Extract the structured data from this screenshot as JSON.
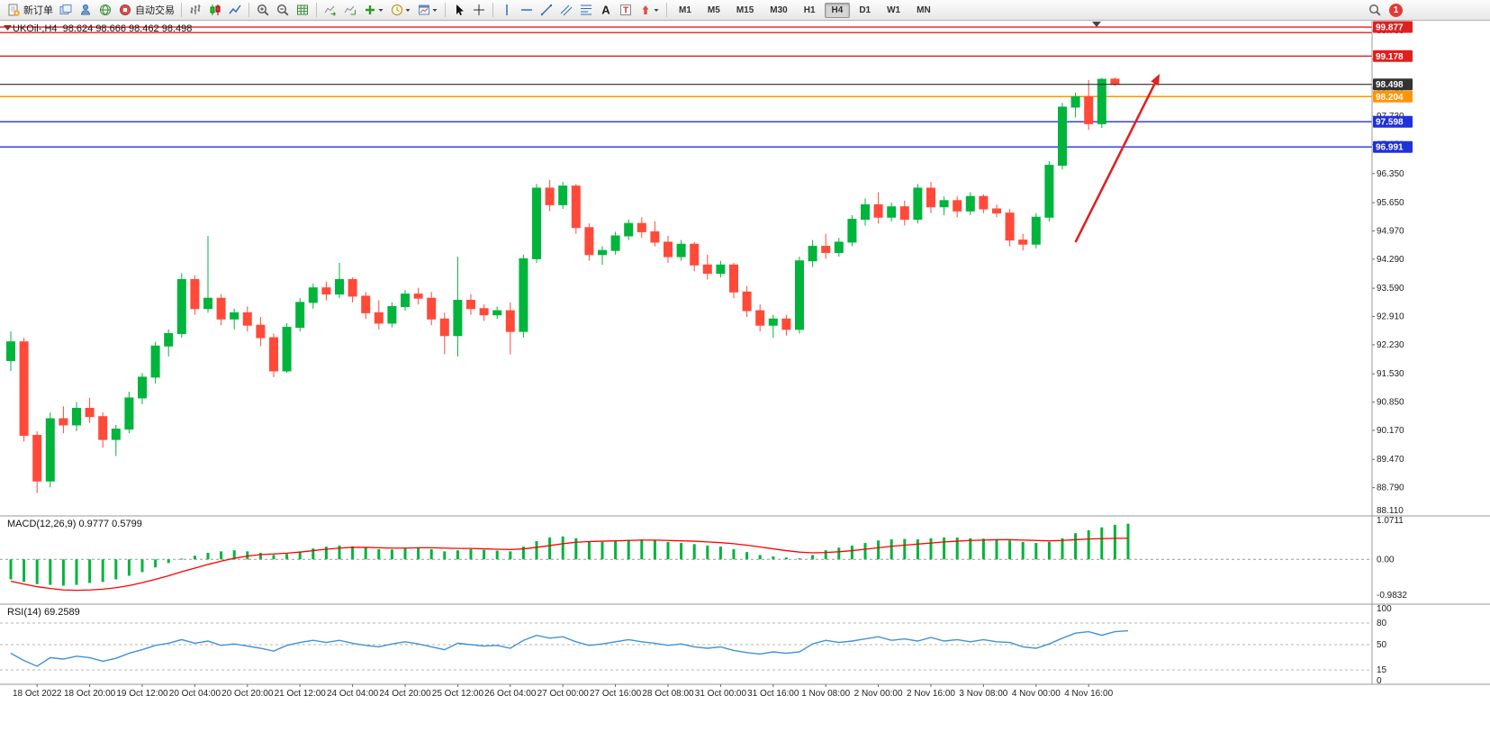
{
  "toolbar": {
    "notification_count": "1",
    "active_timeframe": "H4",
    "timeframes": [
      "M1",
      "M5",
      "M15",
      "M30",
      "H1",
      "H4",
      "D1",
      "W1",
      "MN"
    ],
    "items": [
      {
        "type": "button",
        "name": "new-order-button",
        "icon": "new-order",
        "label": "新订单"
      },
      {
        "type": "icon",
        "name": "chart-windows-icon",
        "icon": "layers"
      },
      {
        "type": "icon",
        "name": "market-watch-icon",
        "icon": "person"
      },
      {
        "type": "icon",
        "name": "community-icon",
        "icon": "globe"
      },
      {
        "type": "button",
        "name": "autotrading-button",
        "icon": "autotrade",
        "label": "自动交易"
      },
      {
        "type": "sep"
      },
      {
        "type": "icon",
        "name": "bar-chart-button",
        "icon": "bars"
      },
      {
        "type": "icon",
        "name": "candlestick-chart-button",
        "icon": "candles"
      },
      {
        "type": "icon",
        "name": "line-chart-button",
        "icon": "linechart"
      },
      {
        "type": "sep"
      },
      {
        "type": "icon",
        "name": "zoom-in-button",
        "icon": "zoom-in"
      },
      {
        "type": "icon",
        "name": "zoom-out-button",
        "icon": "zoom-out"
      },
      {
        "type": "icon",
        "name": "tile-windows-button",
        "icon": "grid"
      },
      {
        "type": "sep"
      },
      {
        "type": "icon",
        "name": "auto-scroll-button",
        "icon": "autoscroll"
      },
      {
        "type": "icon",
        "name": "chart-shift-button",
        "icon": "chartshift"
      },
      {
        "type": "icon",
        "name": "indicators-button",
        "icon": "plus",
        "dropdown": true
      },
      {
        "type": "icon",
        "name": "periods-button",
        "icon": "clock",
        "dropdown": true
      },
      {
        "type": "icon",
        "name": "templates-button",
        "icon": "template",
        "dropdown": true
      },
      {
        "type": "sep"
      },
      {
        "type": "icon",
        "name": "cursor-button",
        "icon": "cursor"
      },
      {
        "type": "icon",
        "name": "crosshair-button",
        "icon": "crosshair"
      },
      {
        "type": "sep"
      },
      {
        "type": "icon",
        "name": "vertical-line-button",
        "icon": "vline"
      },
      {
        "type": "icon",
        "name": "horizontal-line-button",
        "icon": "hline"
      },
      {
        "type": "icon",
        "name": "trendline-button",
        "icon": "trendline"
      },
      {
        "type": "icon",
        "name": "equidistant-channel-button",
        "icon": "channel"
      },
      {
        "type": "icon",
        "name": "fibonacci-button",
        "icon": "fibo"
      },
      {
        "type": "icon",
        "name": "text-button",
        "icon": "textA"
      },
      {
        "type": "icon",
        "name": "text-label-button",
        "icon": "textT"
      },
      {
        "type": "icon",
        "name": "arrows-button",
        "icon": "arrowmark",
        "dropdown": true
      },
      {
        "type": "sep"
      },
      {
        "type": "timeframes"
      },
      {
        "type": "spacer"
      },
      {
        "type": "icon",
        "name": "search-icon",
        "icon": "search"
      },
      {
        "type": "badge",
        "name": "notification-badge"
      },
      {
        "type": "rightpad"
      }
    ]
  },
  "chart": {
    "header": "UKOil-,H4  98.624 98.666 98.462 98.498",
    "macd_label": "MACD(12,26,9) 0.9777 0.5799",
    "rsi_label": "RSI(14) 69.2589"
  },
  "chart_data": {
    "type": "candlestick",
    "symbol": "UKOil-",
    "timeframe": "H4",
    "ohlc_header": {
      "open": 98.624,
      "high": 98.666,
      "low": 98.462,
      "close": 98.498
    },
    "price_axis": {
      "min": 88.11,
      "max": 100.03,
      "ticks": [
        "99.790",
        "99.110",
        "98.410",
        "97.730",
        "97.050",
        "96.350",
        "95.650",
        "94.970",
        "94.290",
        "93.590",
        "92.910",
        "92.230",
        "91.530",
        "90.850",
        "90.170",
        "89.470",
        "88.790",
        "88.110"
      ]
    },
    "time_labels": [
      "18 Oct 2022",
      "18 Oct 20:00",
      "19 Oct 12:00",
      "20 Oct 04:00",
      "20 Oct 20:00",
      "21 Oct 12:00",
      "24 Oct 04:00",
      "24 Oct 20:00",
      "25 Oct 12:00",
      "26 Oct 04:00",
      "27 Oct 00:00",
      "27 Oct 16:00",
      "28 Oct 08:00",
      "31 Oct 00:00",
      "31 Oct 16:00",
      "1 Nov 08:00",
      "2 Nov 00:00",
      "2 Nov 16:00",
      "3 Nov 08:00",
      "4 Nov 00:00",
      "4 Nov 16:00"
    ],
    "candles": [
      [
        91.85,
        92.55,
        91.6,
        92.3
      ],
      [
        92.3,
        92.4,
        89.9,
        90.05
      ],
      [
        90.05,
        90.15,
        88.66,
        88.95
      ],
      [
        88.95,
        90.6,
        88.8,
        90.45
      ],
      [
        90.45,
        90.75,
        90.1,
        90.3
      ],
      [
        90.3,
        90.85,
        90.15,
        90.7
      ],
      [
        90.7,
        90.95,
        90.35,
        90.5
      ],
      [
        90.5,
        90.6,
        89.75,
        89.95
      ],
      [
        89.95,
        90.3,
        89.55,
        90.2
      ],
      [
        90.2,
        91.1,
        90.1,
        90.95
      ],
      [
        90.95,
        91.55,
        90.8,
        91.45
      ],
      [
        91.45,
        92.3,
        91.3,
        92.2
      ],
      [
        92.2,
        92.6,
        91.95,
        92.5
      ],
      [
        92.5,
        93.95,
        92.4,
        93.8
      ],
      [
        93.8,
        93.9,
        92.95,
        93.1
      ],
      [
        93.1,
        94.85,
        93.0,
        93.35
      ],
      [
        93.35,
        93.45,
        92.7,
        92.85
      ],
      [
        92.85,
        93.1,
        92.6,
        93.0
      ],
      [
        93.0,
        93.15,
        92.55,
        92.7
      ],
      [
        92.7,
        92.9,
        92.2,
        92.4
      ],
      [
        92.4,
        92.5,
        91.45,
        91.6
      ],
      [
        91.6,
        92.75,
        91.55,
        92.65
      ],
      [
        92.65,
        93.35,
        92.55,
        93.25
      ],
      [
        93.25,
        93.7,
        93.1,
        93.6
      ],
      [
        93.6,
        93.75,
        93.3,
        93.45
      ],
      [
        93.45,
        94.2,
        93.35,
        93.8
      ],
      [
        93.8,
        93.85,
        93.25,
        93.4
      ],
      [
        93.4,
        93.5,
        92.85,
        93.0
      ],
      [
        93.0,
        93.3,
        92.6,
        92.75
      ],
      [
        92.75,
        93.25,
        92.65,
        93.15
      ],
      [
        93.15,
        93.55,
        93.05,
        93.45
      ],
      [
        93.45,
        93.6,
        93.2,
        93.35
      ],
      [
        93.35,
        93.5,
        92.7,
        92.85
      ],
      [
        92.85,
        93.0,
        92.0,
        92.45
      ],
      [
        92.45,
        94.35,
        91.95,
        93.3
      ],
      [
        93.3,
        93.45,
        92.95,
        93.1
      ],
      [
        93.1,
        93.2,
        92.8,
        92.95
      ],
      [
        92.95,
        93.15,
        92.85,
        93.05
      ],
      [
        93.05,
        93.25,
        92.0,
        92.55
      ],
      [
        92.55,
        94.4,
        92.4,
        94.3
      ],
      [
        94.3,
        96.1,
        94.2,
        96.0
      ],
      [
        96.0,
        96.2,
        95.45,
        95.6
      ],
      [
        95.6,
        96.15,
        95.5,
        96.05
      ],
      [
        96.05,
        96.1,
        94.9,
        95.05
      ],
      [
        95.05,
        95.15,
        94.25,
        94.4
      ],
      [
        94.4,
        94.6,
        94.15,
        94.5
      ],
      [
        94.5,
        94.95,
        94.4,
        94.85
      ],
      [
        94.85,
        95.25,
        94.75,
        95.15
      ],
      [
        95.15,
        95.3,
        94.8,
        94.95
      ],
      [
        94.95,
        95.2,
        94.6,
        94.7
      ],
      [
        94.7,
        94.85,
        94.2,
        94.35
      ],
      [
        94.35,
        94.75,
        94.25,
        94.65
      ],
      [
        94.65,
        94.7,
        94.0,
        94.15
      ],
      [
        94.15,
        94.4,
        93.8,
        93.95
      ],
      [
        93.95,
        94.25,
        93.85,
        94.15
      ],
      [
        94.15,
        94.2,
        93.35,
        93.5
      ],
      [
        93.5,
        93.65,
        92.9,
        93.05
      ],
      [
        93.05,
        93.2,
        92.55,
        92.7
      ],
      [
        92.7,
        92.95,
        92.4,
        92.85
      ],
      [
        92.85,
        92.95,
        92.45,
        92.6
      ],
      [
        92.6,
        94.35,
        92.5,
        94.25
      ],
      [
        94.25,
        94.75,
        94.1,
        94.6
      ],
      [
        94.6,
        94.9,
        94.3,
        94.45
      ],
      [
        94.45,
        94.8,
        94.35,
        94.7
      ],
      [
        94.7,
        95.35,
        94.6,
        95.25
      ],
      [
        95.25,
        95.75,
        95.1,
        95.6
      ],
      [
        95.6,
        95.9,
        95.15,
        95.3
      ],
      [
        95.3,
        95.65,
        95.2,
        95.55
      ],
      [
        95.55,
        95.7,
        95.1,
        95.25
      ],
      [
        95.25,
        96.1,
        95.15,
        96.0
      ],
      [
        96.0,
        96.15,
        95.4,
        95.55
      ],
      [
        95.55,
        95.8,
        95.35,
        95.7
      ],
      [
        95.7,
        95.8,
        95.3,
        95.45
      ],
      [
        95.45,
        95.9,
        95.35,
        95.8
      ],
      [
        95.8,
        95.85,
        95.4,
        95.5
      ],
      [
        95.5,
        95.6,
        95.3,
        95.4
      ],
      [
        95.4,
        95.5,
        94.6,
        94.75
      ],
      [
        94.75,
        94.9,
        94.5,
        94.65
      ],
      [
        94.65,
        95.4,
        94.55,
        95.3
      ],
      [
        95.3,
        96.65,
        95.2,
        96.55
      ],
      [
        96.55,
        98.05,
        96.45,
        97.95
      ],
      [
        97.95,
        98.3,
        97.7,
        98.2
      ],
      [
        98.2,
        98.6,
        97.4,
        97.55
      ],
      [
        97.55,
        98.65,
        97.45,
        98.62
      ],
      [
        98.624,
        98.666,
        98.462,
        98.498
      ]
    ],
    "hlines": [
      {
        "price": 99.877,
        "color": "red",
        "label": "99.877"
      },
      {
        "price": 99.745,
        "color": "red",
        "label": ""
      },
      {
        "price": 99.178,
        "color": "red",
        "label": "99.178"
      },
      {
        "price": 98.204,
        "color": "orange",
        "label": "98.204"
      },
      {
        "price": 97.598,
        "color": "blue",
        "label": "97.598"
      },
      {
        "price": 96.991,
        "color": "blue",
        "label": "96.991"
      }
    ],
    "current_price": {
      "value": 98.498,
      "label": "98.498"
    },
    "trend_arrow": {
      "from_index": 81,
      "from_price": 94.7,
      "to_index": 87.4,
      "to_price": 98.75
    },
    "macd": {
      "name": "MACD(12,26,9)",
      "value": 0.9777,
      "signal_value": 0.5799,
      "axis_labels": [
        "1.0711",
        "0.00",
        "-0.9832"
      ],
      "max": 1.0711,
      "min": -0.9832,
      "hist": [
        -0.55,
        -0.62,
        -0.68,
        -0.7,
        -0.72,
        -0.7,
        -0.65,
        -0.62,
        -0.55,
        -0.45,
        -0.35,
        -0.22,
        -0.1,
        0.02,
        0.1,
        0.18,
        0.22,
        0.25,
        0.22,
        0.18,
        0.12,
        0.15,
        0.22,
        0.3,
        0.35,
        0.38,
        0.36,
        0.32,
        0.28,
        0.27,
        0.3,
        0.32,
        0.28,
        0.22,
        0.25,
        0.28,
        0.26,
        0.24,
        0.22,
        0.35,
        0.5,
        0.6,
        0.63,
        0.58,
        0.5,
        0.48,
        0.5,
        0.54,
        0.55,
        0.52,
        0.48,
        0.45,
        0.42,
        0.38,
        0.35,
        0.28,
        0.2,
        0.12,
        0.08,
        0.05,
        0.03,
        0.12,
        0.25,
        0.32,
        0.38,
        0.45,
        0.52,
        0.55,
        0.56,
        0.55,
        0.58,
        0.6,
        0.6,
        0.58,
        0.57,
        0.55,
        0.52,
        0.48,
        0.45,
        0.48,
        0.58,
        0.72,
        0.8,
        0.88,
        0.95,
        0.98
      ],
      "signal": [
        -0.6,
        -0.68,
        -0.75,
        -0.8,
        -0.84,
        -0.85,
        -0.84,
        -0.82,
        -0.78,
        -0.72,
        -0.64,
        -0.55,
        -0.45,
        -0.34,
        -0.24,
        -0.14,
        -0.05,
        0.03,
        0.09,
        0.13,
        0.15,
        0.17,
        0.2,
        0.24,
        0.28,
        0.31,
        0.33,
        0.33,
        0.32,
        0.31,
        0.31,
        0.32,
        0.32,
        0.31,
        0.3,
        0.3,
        0.29,
        0.28,
        0.27,
        0.29,
        0.33,
        0.38,
        0.43,
        0.47,
        0.49,
        0.5,
        0.51,
        0.52,
        0.53,
        0.53,
        0.52,
        0.51,
        0.5,
        0.48,
        0.46,
        0.43,
        0.39,
        0.34,
        0.29,
        0.24,
        0.2,
        0.18,
        0.19,
        0.21,
        0.24,
        0.28,
        0.32,
        0.36,
        0.39,
        0.42,
        0.45,
        0.48,
        0.5,
        0.52,
        0.53,
        0.54,
        0.54,
        0.53,
        0.52,
        0.51,
        0.52,
        0.54,
        0.56,
        0.57,
        0.58,
        0.58
      ]
    },
    "rsi": {
      "name": "RSI(14)",
      "value": 69.2589,
      "axis_labels": [
        "100",
        "80",
        "50",
        "15",
        "0"
      ],
      "levels": [
        80,
        50,
        15
      ],
      "values": [
        38,
        28,
        20,
        32,
        30,
        34,
        32,
        27,
        31,
        38,
        43,
        49,
        52,
        57,
        52,
        55,
        49,
        51,
        48,
        45,
        41,
        49,
        53,
        56,
        53,
        56,
        52,
        49,
        47,
        51,
        54,
        51,
        47,
        43,
        52,
        50,
        48,
        49,
        45,
        56,
        63,
        59,
        61,
        54,
        49,
        51,
        54,
        57,
        54,
        52,
        49,
        51,
        47,
        45,
        47,
        42,
        39,
        37,
        40,
        38,
        40,
        51,
        56,
        53,
        55,
        58,
        61,
        56,
        58,
        55,
        60,
        55,
        57,
        54,
        57,
        54,
        53,
        47,
        45,
        51,
        59,
        66,
        68,
        63,
        68,
        69.26
      ]
    },
    "colors": {
      "up": "#00b43c",
      "down": "#ff4a3a",
      "macd_hist": "#00b43c",
      "macd_signal": "#ff0000",
      "rsi_line": "#4292d6",
      "red": "#e01f1f",
      "orange": "#ff9500",
      "blue": "#2030dd",
      "current": "#2b2b2b",
      "arrow": "#e02222"
    }
  }
}
